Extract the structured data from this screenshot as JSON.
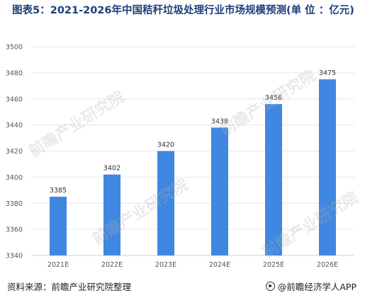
{
  "chart_data": {
    "type": "bar",
    "title": "图表5：2021-2026年中国秸秆垃圾处理行业市场规模预测(单 位 ：亿元)",
    "categories": [
      "2021E",
      "2022E",
      "2023E",
      "2024E",
      "2025E",
      "2026E"
    ],
    "values": [
      3385,
      3402,
      3420,
      3438,
      3456,
      3475
    ],
    "xlabel": "",
    "ylabel": "",
    "ylim": [
      3340,
      3500
    ],
    "yticks": [
      3340,
      3360,
      3380,
      3400,
      3420,
      3440,
      3460,
      3480,
      3500
    ],
    "grid": true,
    "bar_color": "#3f87e0",
    "title_color": "#1f3f7a"
  },
  "footer": {
    "source": "资料来源：前瞻产业研究院整理",
    "brand": "@前瞻经济学人APP"
  },
  "watermark": {
    "text": "前瞻产业研究院"
  }
}
